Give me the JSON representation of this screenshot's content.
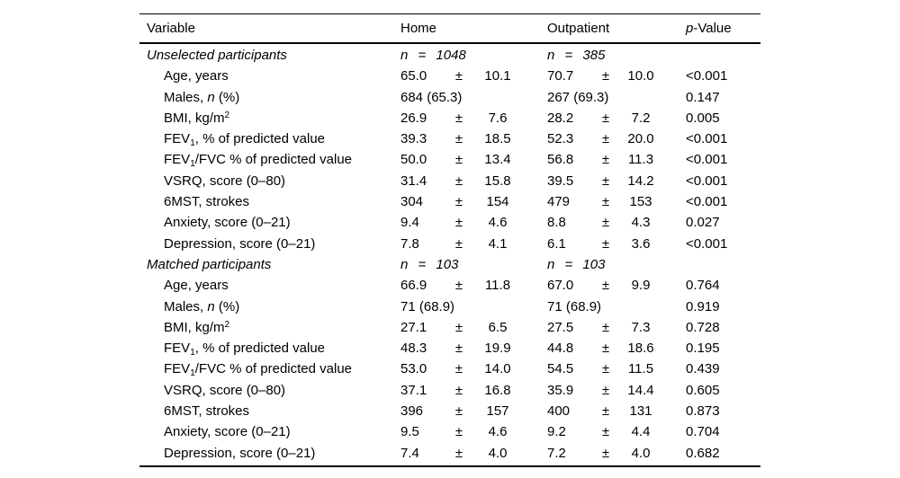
{
  "table": {
    "headers": {
      "variable": "Variable",
      "home": "Home",
      "outpatient": "Outpatient",
      "p_italic": "p",
      "p_rest": "-Value"
    },
    "sections": [
      {
        "label": "Unselected participants",
        "home_n": "n = 1048",
        "outpatient_n": "n = 385",
        "rows": [
          {
            "variable": [
              {
                "t": "Age, years"
              }
            ],
            "home": {
              "value": "65.0",
              "pm": "±",
              "sd": "10.1"
            },
            "outpatient": {
              "value": "70.7",
              "pm": "±",
              "sd": "10.0"
            },
            "p": "<0.001"
          },
          {
            "variable": [
              {
                "t": "Males, "
              },
              {
                "t": "n",
                "i": true
              },
              {
                "t": " (%)"
              }
            ],
            "home": {
              "value": "684 (65.3)"
            },
            "outpatient": {
              "value": "267 (69.3)"
            },
            "p": "0.147"
          },
          {
            "variable": [
              {
                "t": "BMI, kg/m"
              },
              {
                "t": "2",
                "sup": true
              }
            ],
            "home": {
              "value": "26.9",
              "pm": "±",
              "sd": "7.6"
            },
            "outpatient": {
              "value": "28.2",
              "pm": "±",
              "sd": "7.2"
            },
            "p": "0.005"
          },
          {
            "variable": [
              {
                "t": "FEV"
              },
              {
                "t": "1",
                "sub": true
              },
              {
                "t": ", % of predicted value"
              }
            ],
            "home": {
              "value": "39.3",
              "pm": "±",
              "sd": "18.5"
            },
            "outpatient": {
              "value": "52.3",
              "pm": "±",
              "sd": "20.0"
            },
            "p": "<0.001"
          },
          {
            "variable": [
              {
                "t": "FEV"
              },
              {
                "t": "1",
                "sub": true
              },
              {
                "t": "/FVC % of predicted value"
              }
            ],
            "home": {
              "value": "50.0",
              "pm": "±",
              "sd": "13.4"
            },
            "outpatient": {
              "value": "56.8",
              "pm": "±",
              "sd": "11.3"
            },
            "p": "<0.001"
          },
          {
            "variable": [
              {
                "t": "VSRQ, score (0–80)"
              }
            ],
            "home": {
              "value": "31.4",
              "pm": "±",
              "sd": "15.8"
            },
            "outpatient": {
              "value": "39.5",
              "pm": "±",
              "sd": "14.2"
            },
            "p": "<0.001"
          },
          {
            "variable": [
              {
                "t": "6MST, strokes"
              }
            ],
            "home": {
              "value": "304",
              "pm": "±",
              "sd": "154"
            },
            "outpatient": {
              "value": "479",
              "pm": "±",
              "sd": "153"
            },
            "p": "<0.001"
          },
          {
            "variable": [
              {
                "t": "Anxiety, score (0–21)"
              }
            ],
            "home": {
              "value": "9.4",
              "pm": "±",
              "sd": "4.6"
            },
            "outpatient": {
              "value": "8.8",
              "pm": "±",
              "sd": "4.3"
            },
            "p": "0.027"
          },
          {
            "variable": [
              {
                "t": "Depression, score (0–21)"
              }
            ],
            "home": {
              "value": "7.8",
              "pm": "±",
              "sd": "4.1"
            },
            "outpatient": {
              "value": "6.1",
              "pm": "±",
              "sd": "3.6"
            },
            "p": "<0.001"
          }
        ]
      },
      {
        "label": "Matched participants",
        "home_n": "n = 103",
        "outpatient_n": "n = 103",
        "rows": [
          {
            "variable": [
              {
                "t": "Age, years"
              }
            ],
            "home": {
              "value": "66.9",
              "pm": "±",
              "sd": "11.8"
            },
            "outpatient": {
              "value": "67.0",
              "pm": "±",
              "sd": "9.9"
            },
            "p": "0.764"
          },
          {
            "variable": [
              {
                "t": "Males, "
              },
              {
                "t": "n",
                "i": true
              },
              {
                "t": " (%)"
              }
            ],
            "home": {
              "value": "71 (68.9)"
            },
            "outpatient": {
              "value": "71 (68.9)"
            },
            "p": "0.919"
          },
          {
            "variable": [
              {
                "t": "BMI, kg/m"
              },
              {
                "t": "2",
                "sup": true
              }
            ],
            "home": {
              "value": "27.1",
              "pm": "±",
              "sd": "6.5"
            },
            "outpatient": {
              "value": "27.5",
              "pm": "±",
              "sd": "7.3"
            },
            "p": "0.728"
          },
          {
            "variable": [
              {
                "t": "FEV"
              },
              {
                "t": "1",
                "sub": true
              },
              {
                "t": ", % of predicted value"
              }
            ],
            "home": {
              "value": "48.3",
              "pm": "±",
              "sd": "19.9"
            },
            "outpatient": {
              "value": "44.8",
              "pm": "±",
              "sd": "18.6"
            },
            "p": "0.195"
          },
          {
            "variable": [
              {
                "t": "FEV"
              },
              {
                "t": "1",
                "sub": true
              },
              {
                "t": "/FVC % of predicted value"
              }
            ],
            "home": {
              "value": "53.0",
              "pm": "±",
              "sd": "14.0"
            },
            "outpatient": {
              "value": "54.5",
              "pm": "±",
              "sd": "11.5"
            },
            "p": "0.439"
          },
          {
            "variable": [
              {
                "t": "VSRQ, score (0–80)"
              }
            ],
            "home": {
              "value": "37.1",
              "pm": "±",
              "sd": "16.8"
            },
            "outpatient": {
              "value": "35.9",
              "pm": "±",
              "sd": "14.4"
            },
            "p": "0.605"
          },
          {
            "variable": [
              {
                "t": "6MST, strokes"
              }
            ],
            "home": {
              "value": "396",
              "pm": "±",
              "sd": "157"
            },
            "outpatient": {
              "value": "400",
              "pm": "±",
              "sd": "131"
            },
            "p": "0.873"
          },
          {
            "variable": [
              {
                "t": "Anxiety, score (0–21)"
              }
            ],
            "home": {
              "value": "9.5",
              "pm": "±",
              "sd": "4.6"
            },
            "outpatient": {
              "value": "9.2",
              "pm": "±",
              "sd": "4.4"
            },
            "p": "0.704"
          },
          {
            "variable": [
              {
                "t": "Depression, score (0–21)"
              }
            ],
            "home": {
              "value": "7.4",
              "pm": "±",
              "sd": "4.0"
            },
            "outpatient": {
              "value": "7.2",
              "pm": "±",
              "sd": "4.0"
            },
            "p": "0.682"
          }
        ]
      }
    ]
  }
}
